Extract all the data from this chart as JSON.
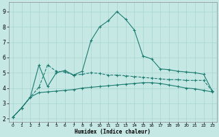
{
  "xlabel": "Humidex (Indice chaleur)",
  "background_color": "#c5e8e5",
  "grid_color": "#a8d4d0",
  "line_color": "#1a7a6e",
  "xlim": [
    -0.5,
    23.5
  ],
  "ylim": [
    1.8,
    9.6
  ],
  "xticks": [
    0,
    1,
    2,
    3,
    4,
    5,
    6,
    7,
    8,
    9,
    10,
    11,
    12,
    13,
    14,
    15,
    16,
    17,
    18,
    19,
    20,
    21,
    22,
    23
  ],
  "yticks": [
    2,
    3,
    4,
    5,
    6,
    7,
    8,
    9
  ],
  "line1_x": [
    0,
    1,
    2,
    3,
    4,
    5,
    6,
    7,
    8,
    9,
    10,
    11,
    12,
    13,
    14,
    15,
    16,
    17,
    18,
    19,
    20,
    21,
    22,
    23
  ],
  "line1_y": [
    2.1,
    2.7,
    3.4,
    3.7,
    3.75,
    3.8,
    3.85,
    3.9,
    4.0,
    4.05,
    4.1,
    4.15,
    4.2,
    4.25,
    4.3,
    4.35,
    4.35,
    4.3,
    4.2,
    4.1,
    4.0,
    3.95,
    3.85,
    3.75
  ],
  "line2_x": [
    0,
    1,
    2,
    3,
    4,
    5,
    6,
    7,
    8,
    9,
    10,
    11,
    12,
    13,
    14,
    15,
    16,
    17,
    18,
    19,
    20,
    21,
    22,
    23
  ],
  "line2_y": [
    2.1,
    2.7,
    3.4,
    4.05,
    5.5,
    5.1,
    5.05,
    4.85,
    4.9,
    5.0,
    4.95,
    4.85,
    4.85,
    4.8,
    4.75,
    4.7,
    4.65,
    4.6,
    4.55,
    4.55,
    4.5,
    4.5,
    4.5,
    3.8
  ],
  "line3_x": [
    0,
    1,
    2,
    3,
    4,
    5,
    6,
    7,
    8,
    9,
    10,
    11,
    12,
    13,
    14,
    15,
    16,
    17,
    18,
    19,
    20,
    21,
    22,
    23
  ],
  "line3_y": [
    2.1,
    2.7,
    3.4,
    5.5,
    4.1,
    5.0,
    5.15,
    4.85,
    5.1,
    7.1,
    8.0,
    8.4,
    9.0,
    8.5,
    7.8,
    6.1,
    5.9,
    5.25,
    5.2,
    5.1,
    5.05,
    5.0,
    4.9,
    3.8
  ]
}
